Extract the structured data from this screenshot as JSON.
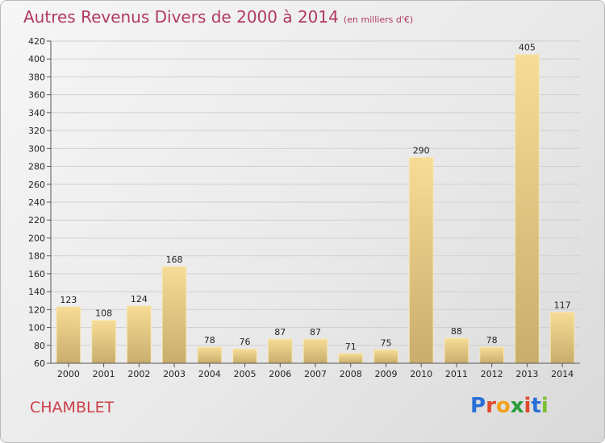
{
  "header": {
    "title": "Autres Revenus Divers de 2000 à 2014",
    "unit": "(en milliers d'€)"
  },
  "footer": {
    "commune": "CHAMBLET",
    "logo_text": "Proxiti",
    "logo_colors": [
      "#2a6fd6",
      "#e0492b",
      "#f0a21b",
      "#2a9d3a",
      "#e0492b",
      "#2a6fd6",
      "#7cbf2f"
    ]
  },
  "chart_data": {
    "type": "bar",
    "title": "Autres Revenus Divers de 2000 à 2014",
    "subtitle": "(en milliers d'€)",
    "categories": [
      "2000",
      "2001",
      "2002",
      "2003",
      "2004",
      "2005",
      "2006",
      "2007",
      "2008",
      "2009",
      "2010",
      "2011",
      "2012",
      "2013",
      "2014"
    ],
    "values": [
      123,
      108,
      124,
      168,
      78,
      76,
      87,
      87,
      71,
      75,
      290,
      88,
      78,
      405,
      117
    ],
    "ylim": [
      60,
      420
    ],
    "yticks": [
      60,
      80,
      100,
      120,
      140,
      160,
      180,
      200,
      220,
      240,
      260,
      280,
      300,
      320,
      340,
      360,
      380,
      400,
      420
    ],
    "grid": true,
    "legend": "none",
    "bar_color": "#e8cf8a",
    "bar_edge_color": "#f7e7b5"
  }
}
